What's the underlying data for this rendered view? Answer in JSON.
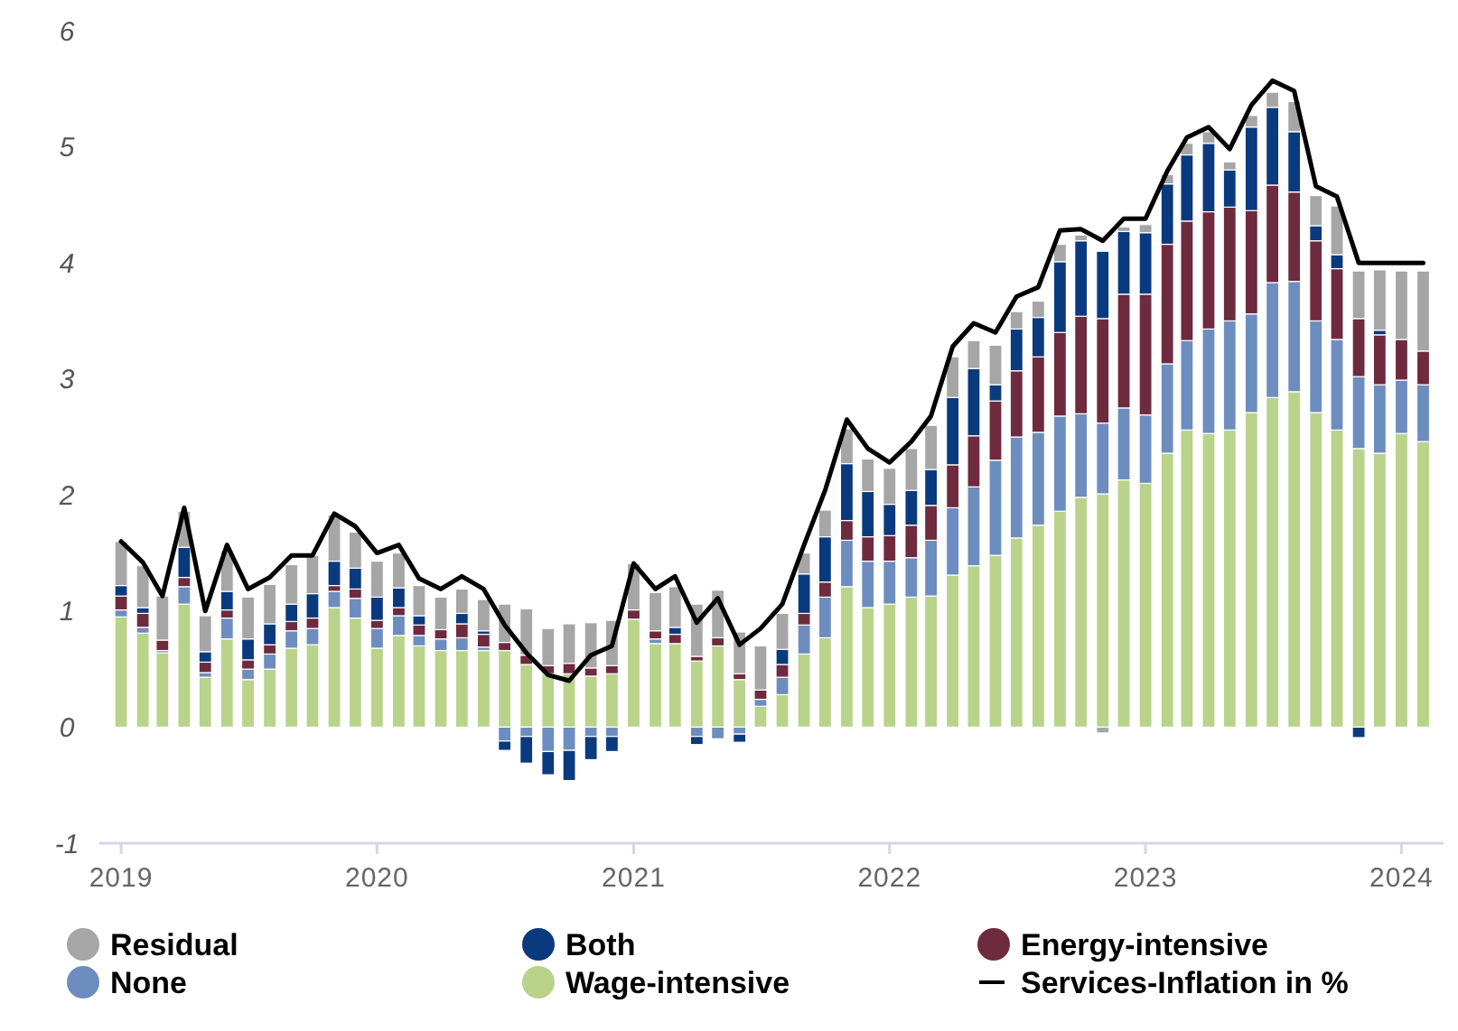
{
  "chart_data": {
    "type": "bar",
    "stacked": true,
    "legend": "bottom",
    "marker": "none",
    "line_style": "solid",
    "x": [
      "2019-01",
      "2019-02",
      "2019-03",
      "2019-04",
      "2019-05",
      "2019-06",
      "2019-07",
      "2019-08",
      "2019-09",
      "2019-10",
      "2019-11",
      "2019-12",
      "2020-01",
      "2020-02",
      "2020-03",
      "2020-04",
      "2020-05",
      "2020-06",
      "2020-07",
      "2020-08",
      "2020-09",
      "2020-10",
      "2020-11",
      "2020-12",
      "2021-01",
      "2021-02",
      "2021-03",
      "2021-04",
      "2021-05",
      "2021-06",
      "2021-07",
      "2021-08",
      "2021-09",
      "2021-10",
      "2021-11",
      "2021-12",
      "2022-01",
      "2022-02",
      "2022-03",
      "2022-04",
      "2022-05",
      "2022-06",
      "2022-07",
      "2022-08",
      "2022-09",
      "2022-10",
      "2022-11",
      "2022-12",
      "2023-01",
      "2023-02",
      "2023-03",
      "2023-04",
      "2023-05",
      "2023-06",
      "2023-07",
      "2023-08",
      "2023-09",
      "2023-10",
      "2023-11",
      "2023-12",
      "2024-01",
      "2024-02"
    ],
    "xlim": [
      "2018-12-01",
      "2024-03-01"
    ],
    "xticks": [
      "2019",
      "2020",
      "2021",
      "2022",
      "2023",
      "2024"
    ],
    "ylim": [
      -1,
      6
    ],
    "yticks": [
      -1,
      0,
      1,
      2,
      3,
      4,
      5,
      6
    ],
    "series": [
      {
        "name": "Wage-intensive",
        "color": "#b9d38a",
        "values": [
          0.95,
          0.81,
          0.64,
          1.06,
          0.43,
          0.76,
          0.41,
          0.5,
          0.68,
          0.71,
          1.03,
          0.94,
          0.68,
          0.79,
          0.7,
          0.66,
          0.66,
          0.66,
          0.66,
          0.54,
          0.46,
          0.46,
          0.44,
          0.46,
          0.93,
          0.72,
          0.72,
          0.57,
          0.7,
          0.41,
          0.18,
          0.28,
          0.63,
          0.77,
          1.21,
          1.03,
          1.06,
          1.12,
          1.13,
          1.31,
          1.39,
          1.48,
          1.63,
          1.74,
          1.86,
          1.98,
          2.01,
          2.13,
          2.1,
          2.36,
          2.56,
          2.53,
          2.56,
          2.71,
          2.84,
          2.89,
          2.71,
          2.56,
          2.4,
          2.36,
          2.53,
          2.46
        ]
      },
      {
        "name": "None",
        "color": "#6d8dbf",
        "values": [
          0.06,
          0.05,
          0.02,
          0.15,
          0.04,
          0.18,
          0.09,
          0.13,
          0.15,
          0.14,
          0.14,
          0.17,
          0.17,
          0.17,
          0.09,
          0.1,
          0.11,
          0.03,
          -0.12,
          -0.08,
          -0.21,
          -0.2,
          -0.08,
          -0.08,
          0,
          0.04,
          0,
          -0.08,
          -0.1,
          -0.06,
          0.06,
          0.15,
          0.25,
          0.35,
          0.4,
          0.4,
          0.37,
          0.34,
          0.48,
          0.58,
          0.68,
          0.82,
          0.87,
          0.8,
          0.82,
          0.72,
          0.61,
          0.62,
          0.59,
          0.77,
          0.77,
          0.9,
          0.94,
          0.85,
          0.99,
          0.95,
          0.79,
          0.78,
          0.62,
          0.59,
          0.46,
          0.49
        ]
      },
      {
        "name": "Energy-intensive",
        "color": "#6e2a3e",
        "values": [
          0.12,
          0.12,
          0.09,
          0.08,
          0.09,
          0.07,
          0.08,
          0.08,
          0.08,
          0.09,
          0.05,
          0.08,
          0.07,
          0.07,
          0.09,
          0.08,
          0.12,
          0.11,
          0.07,
          0.08,
          0.07,
          0.09,
          0.07,
          0.07,
          0.08,
          0.07,
          0.08,
          0.04,
          0.07,
          0.05,
          0.08,
          0.11,
          0.1,
          0.13,
          0.17,
          0.21,
          0.22,
          0.28,
          0.3,
          0.37,
          0.44,
          0.51,
          0.57,
          0.65,
          0.72,
          0.84,
          0.9,
          0.98,
          1.04,
          1.03,
          1.03,
          1.01,
          0.98,
          0.89,
          0.84,
          0.77,
          0.69,
          0.61,
          0.5,
          0.43,
          0.35,
          0.29
        ]
      },
      {
        "name": "Both",
        "color": "#0a3a7e",
        "values": [
          0.09,
          0.05,
          0,
          0.26,
          0.09,
          0.16,
          0.18,
          0.18,
          0.15,
          0.21,
          0.21,
          0.18,
          0.2,
          0.17,
          0.08,
          0,
          0.09,
          0.03,
          -0.08,
          -0.23,
          -0.2,
          -0.26,
          -0.2,
          -0.13,
          0,
          0,
          0.06,
          -0.07,
          0,
          -0.07,
          0,
          0.13,
          0.34,
          0.39,
          0.49,
          0.39,
          0.27,
          0.3,
          0.31,
          0.58,
          0.58,
          0.14,
          0.36,
          0.34,
          0.61,
          0.65,
          0.58,
          0.54,
          0.53,
          0.52,
          0.57,
          0.59,
          0.32,
          0.72,
          0.67,
          0.52,
          0.13,
          0.12,
          -0.09,
          0.04,
          0,
          0
        ]
      },
      {
        "name": "Residual",
        "color": "#a6a6a6",
        "values": [
          0.38,
          0.36,
          0.38,
          0.31,
          0.31,
          0.35,
          0.36,
          0.34,
          0.34,
          0.33,
          0.4,
          0.31,
          0.31,
          0.3,
          0.26,
          0.28,
          0.21,
          0.27,
          0.33,
          0.4,
          0.32,
          0.34,
          0.39,
          0.39,
          0.4,
          0.33,
          0.35,
          0.45,
          0.41,
          0.36,
          0.38,
          0.31,
          0.18,
          0.23,
          0.3,
          0.28,
          0.31,
          0.36,
          0.38,
          0.35,
          0.24,
          0.34,
          0.15,
          0.14,
          0.15,
          0.05,
          -0.05,
          0.04,
          0.07,
          0.08,
          0.1,
          0.1,
          0.07,
          0.1,
          0.13,
          0.26,
          0.26,
          0.42,
          0.41,
          0.52,
          0.59,
          0.69
        ]
      },
      {
        "name": "Services-Inflation in %",
        "type": "line",
        "color": "#000000",
        "values": [
          1.6,
          1.42,
          1.13,
          1.89,
          1.0,
          1.57,
          1.19,
          1.29,
          1.48,
          1.48,
          1.84,
          1.73,
          1.5,
          1.57,
          1.28,
          1.19,
          1.3,
          1.19,
          0.88,
          0.64,
          0.45,
          0.4,
          0.62,
          0.7,
          1.41,
          1.19,
          1.3,
          0.9,
          1.11,
          0.71,
          0.85,
          1.06,
          1.57,
          2.04,
          2.65,
          2.4,
          2.28,
          2.46,
          2.68,
          3.28,
          3.48,
          3.4,
          3.71,
          3.79,
          4.28,
          4.29,
          4.19,
          4.38,
          4.38,
          4.79,
          5.08,
          5.17,
          4.98,
          5.36,
          5.57,
          5.48,
          4.66,
          4.57,
          4.0,
          4.0,
          4.0,
          4.0
        ]
      }
    ]
  }
}
